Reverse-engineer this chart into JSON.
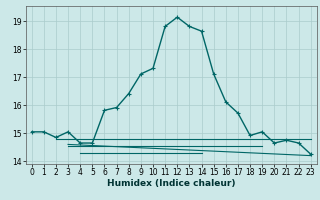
{
  "xlabel": "Humidex (Indice chaleur)",
  "bg_color": "#cce8e8",
  "grid_color": "#aacccc",
  "line_color": "#006666",
  "xlim": [
    -0.5,
    23.5
  ],
  "ylim": [
    13.9,
    19.55
  ],
  "yticks": [
    14,
    15,
    16,
    17,
    18,
    19
  ],
  "xticks": [
    0,
    1,
    2,
    3,
    4,
    5,
    6,
    7,
    8,
    9,
    10,
    11,
    12,
    13,
    14,
    15,
    16,
    17,
    18,
    19,
    20,
    21,
    22,
    23
  ],
  "main_x": [
    0,
    1,
    2,
    3,
    4,
    5,
    6,
    7,
    8,
    9,
    10,
    11,
    12,
    13,
    14,
    15,
    16,
    17,
    18,
    19,
    20,
    21,
    22,
    23
  ],
  "main_y": [
    15.05,
    15.05,
    14.85,
    15.05,
    14.65,
    14.65,
    15.82,
    15.92,
    16.42,
    17.12,
    17.32,
    18.82,
    19.15,
    18.82,
    18.65,
    17.12,
    16.12,
    15.72,
    14.92,
    15.05,
    14.65,
    14.75,
    14.65,
    14.25
  ],
  "extra_lines": [
    {
      "x": [
        2,
        23
      ],
      "y": [
        14.8,
        14.8
      ]
    },
    {
      "x": [
        3,
        23
      ],
      "y": [
        14.6,
        14.2
      ]
    },
    {
      "x": [
        3,
        19
      ],
      "y": [
        14.55,
        14.55
      ]
    },
    {
      "x": [
        4,
        14
      ],
      "y": [
        14.3,
        14.3
      ]
    }
  ]
}
